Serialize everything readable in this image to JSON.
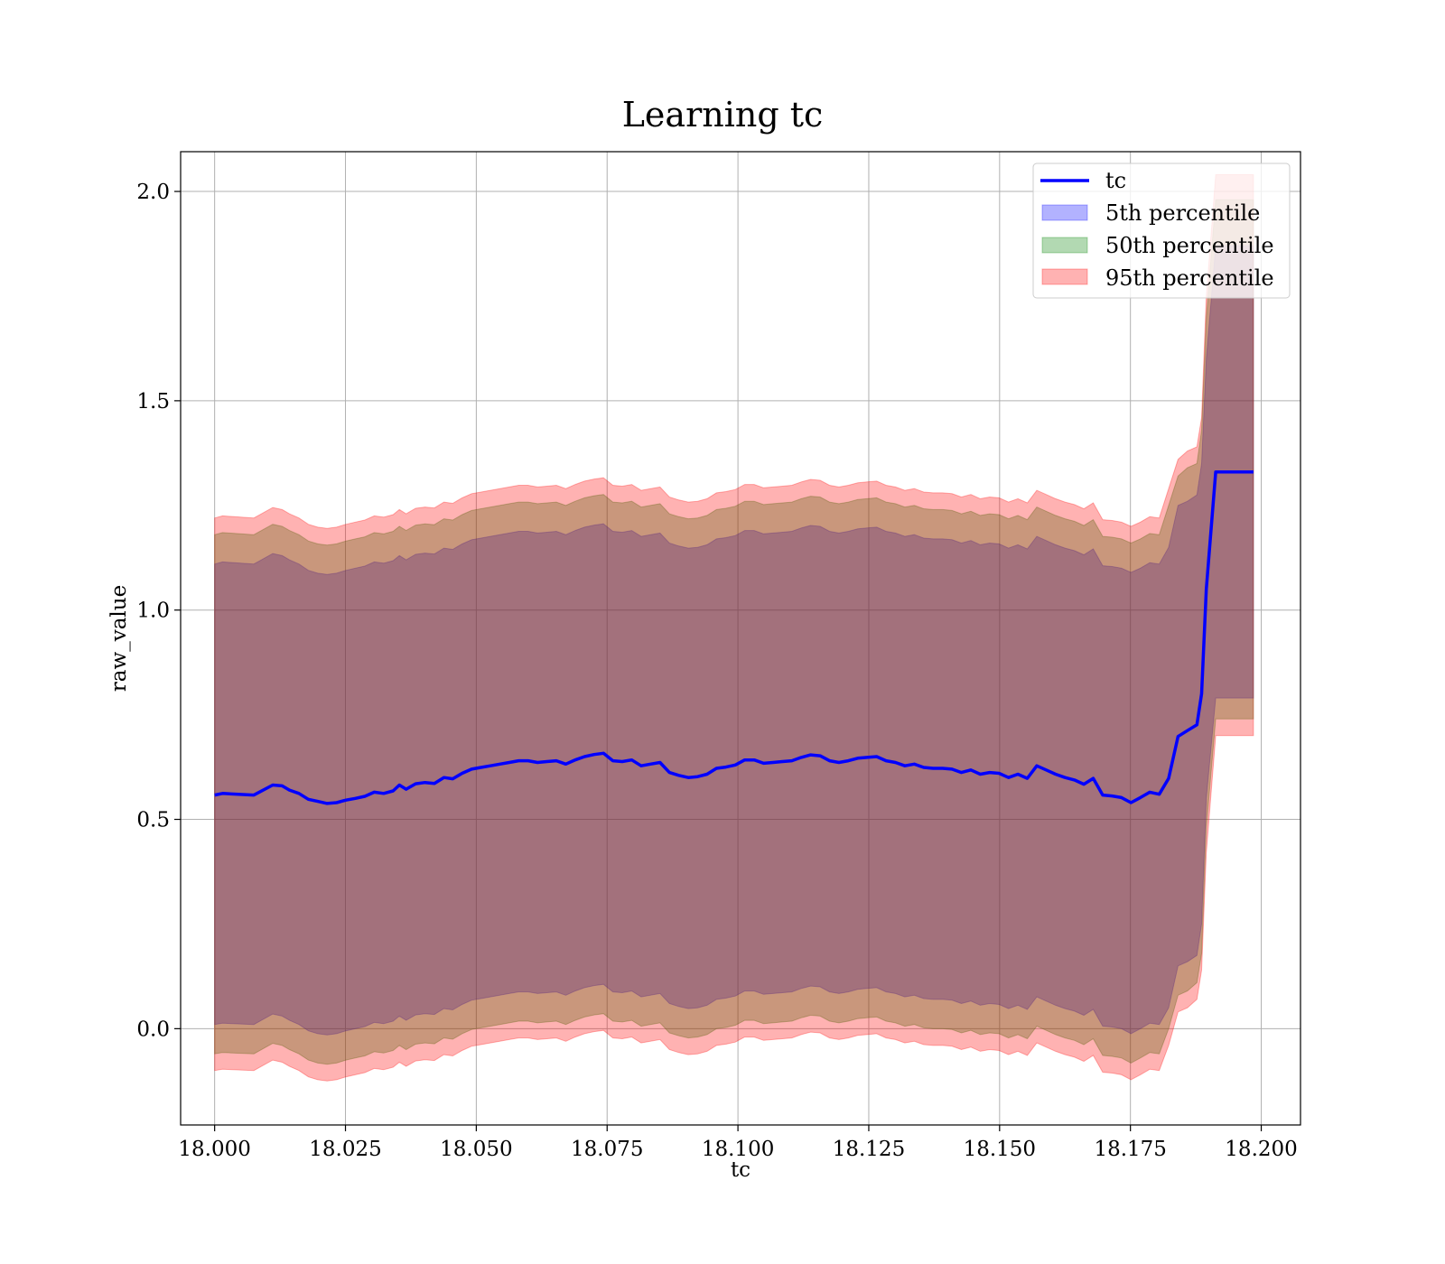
{
  "chart_data": {
    "type": "area",
    "title": "Learning tc",
    "xlabel": "tc",
    "ylabel": "raw_value",
    "xlim": [
      17.9935,
      18.2075
    ],
    "ylim": [
      -0.23,
      2.095
    ],
    "xticks": [
      "18.000",
      "18.025",
      "18.050",
      "18.075",
      "18.100",
      "18.125",
      "18.150",
      "18.175",
      "18.200"
    ],
    "yticks": [
      "0.0",
      "0.5",
      "1.0",
      "1.5",
      "2.0"
    ],
    "grid": true,
    "legend_position": "upper-right",
    "colors": {
      "tc": "#0000ff",
      "p5": "#0000ff",
      "p50": "#008000",
      "p95": "#ff0000",
      "grid": "#b0b0b0"
    },
    "x": [
      18.0,
      18.0015,
      18.0075,
      18.0111,
      18.0129,
      18.0143,
      18.0161,
      18.0179,
      18.0197,
      18.0215,
      18.0233,
      18.0251,
      18.0269,
      18.0287,
      18.0305,
      18.0323,
      18.0341,
      18.0353,
      18.0366,
      18.0384,
      18.0402,
      18.042,
      18.0438,
      18.0455,
      18.0473,
      18.0491,
      18.0509,
      18.0527,
      18.0545,
      18.0563,
      18.0581,
      18.0599,
      18.0617,
      18.0635,
      18.0653,
      18.0671,
      18.0689,
      18.0707,
      18.0725,
      18.0743,
      18.0761,
      18.0779,
      18.0797,
      18.0815,
      18.0833,
      18.0851,
      18.0869,
      18.0887,
      18.0905,
      18.0923,
      18.0941,
      18.0959,
      18.0977,
      18.0995,
      18.1013,
      18.1031,
      18.1049,
      18.1067,
      18.1085,
      18.1103,
      18.1121,
      18.1139,
      18.1157,
      18.1175,
      18.1193,
      18.1211,
      18.1229,
      18.1247,
      18.1265,
      18.1283,
      18.1301,
      18.1319,
      18.1337,
      18.1355,
      18.1373,
      18.1391,
      18.1409,
      18.1427,
      18.1445,
      18.1463,
      18.1481,
      18.1499,
      18.1517,
      18.1535,
      18.1553,
      18.1571,
      18.1589,
      18.1607,
      18.1625,
      18.1643,
      18.1661,
      18.1679,
      18.1697,
      18.1715,
      18.1733,
      18.1751,
      18.1769,
      18.1787,
      18.1805,
      18.1823,
      18.1841,
      18.1859,
      18.1877,
      18.1886,
      18.1895,
      18.1913,
      18.1931,
      18.1949,
      18.1967,
      18.1985
    ],
    "series": [
      {
        "name": "tc",
        "kind": "line",
        "values": [
          0.558,
          0.562,
          0.558,
          0.582,
          0.58,
          0.57,
          0.562,
          0.548,
          0.543,
          0.538,
          0.54,
          0.546,
          0.55,
          0.555,
          0.565,
          0.562,
          0.568,
          0.582,
          0.572,
          0.585,
          0.588,
          0.586,
          0.6,
          0.597,
          0.61,
          0.62,
          0.624,
          0.628,
          0.632,
          0.636,
          0.64,
          0.64,
          0.636,
          0.638,
          0.64,
          0.632,
          0.642,
          0.65,
          0.655,
          0.658,
          0.64,
          0.638,
          0.642,
          0.628,
          0.632,
          0.636,
          0.612,
          0.605,
          0.6,
          0.602,
          0.608,
          0.622,
          0.625,
          0.63,
          0.642,
          0.642,
          0.634,
          0.636,
          0.638,
          0.64,
          0.648,
          0.654,
          0.652,
          0.64,
          0.636,
          0.64,
          0.646,
          0.648,
          0.65,
          0.64,
          0.636,
          0.628,
          0.632,
          0.624,
          0.622,
          0.622,
          0.62,
          0.612,
          0.618,
          0.608,
          0.612,
          0.61,
          0.6,
          0.608,
          0.598,
          0.628,
          0.618,
          0.608,
          0.6,
          0.594,
          0.584,
          0.598,
          0.558,
          0.556,
          0.552,
          0.54,
          0.552,
          0.565,
          0.56,
          0.598,
          0.698,
          0.712,
          0.726,
          0.8,
          1.05,
          1.33,
          1.33,
          1.33,
          1.33,
          1.33
        ]
      },
      {
        "name": "5th percentile",
        "kind": "band",
        "lower": [
          0.01,
          0.013,
          0.01,
          0.035,
          0.03,
          0.02,
          0.01,
          -0.005,
          -0.012,
          -0.015,
          -0.012,
          -0.005,
          0.0,
          0.005,
          0.015,
          0.012,
          0.018,
          0.03,
          0.02,
          0.033,
          0.036,
          0.034,
          0.048,
          0.045,
          0.058,
          0.068,
          0.072,
          0.076,
          0.08,
          0.084,
          0.088,
          0.088,
          0.084,
          0.086,
          0.088,
          0.08,
          0.09,
          0.098,
          0.103,
          0.106,
          0.088,
          0.086,
          0.09,
          0.076,
          0.08,
          0.084,
          0.06,
          0.053,
          0.048,
          0.05,
          0.056,
          0.07,
          0.073,
          0.078,
          0.09,
          0.09,
          0.082,
          0.084,
          0.086,
          0.088,
          0.096,
          0.102,
          0.1,
          0.088,
          0.084,
          0.088,
          0.094,
          0.096,
          0.098,
          0.088,
          0.084,
          0.076,
          0.08,
          0.072,
          0.07,
          0.07,
          0.068,
          0.06,
          0.066,
          0.056,
          0.06,
          0.058,
          0.048,
          0.056,
          0.046,
          0.076,
          0.066,
          0.056,
          0.048,
          0.042,
          0.032,
          0.046,
          0.006,
          0.004,
          0.0,
          -0.012,
          0.0,
          0.013,
          0.01,
          0.05,
          0.15,
          0.16,
          0.175,
          0.25,
          0.55,
          0.79,
          0.79,
          0.79,
          0.79,
          0.79
        ],
        "upper": [
          1.11,
          1.115,
          1.11,
          1.135,
          1.13,
          1.12,
          1.11,
          1.095,
          1.088,
          1.085,
          1.088,
          1.095,
          1.1,
          1.105,
          1.115,
          1.112,
          1.118,
          1.13,
          1.12,
          1.133,
          1.136,
          1.134,
          1.148,
          1.145,
          1.158,
          1.168,
          1.172,
          1.176,
          1.18,
          1.184,
          1.188,
          1.188,
          1.184,
          1.186,
          1.188,
          1.18,
          1.19,
          1.198,
          1.203,
          1.206,
          1.188,
          1.186,
          1.19,
          1.176,
          1.18,
          1.184,
          1.16,
          1.153,
          1.148,
          1.15,
          1.156,
          1.17,
          1.173,
          1.178,
          1.19,
          1.19,
          1.182,
          1.184,
          1.186,
          1.188,
          1.196,
          1.202,
          1.2,
          1.188,
          1.184,
          1.188,
          1.194,
          1.196,
          1.198,
          1.188,
          1.184,
          1.176,
          1.18,
          1.172,
          1.17,
          1.17,
          1.168,
          1.16,
          1.166,
          1.156,
          1.16,
          1.158,
          1.148,
          1.156,
          1.146,
          1.176,
          1.166,
          1.156,
          1.148,
          1.142,
          1.132,
          1.146,
          1.106,
          1.104,
          1.1,
          1.09,
          1.1,
          1.113,
          1.11,
          1.15,
          1.25,
          1.26,
          1.275,
          1.35,
          1.6,
          1.87,
          1.87,
          1.87,
          1.87,
          1.87
        ]
      },
      {
        "name": "50th percentile",
        "kind": "band",
        "lower": [
          -0.06,
          -0.057,
          -0.06,
          -0.035,
          -0.04,
          -0.05,
          -0.06,
          -0.075,
          -0.082,
          -0.085,
          -0.082,
          -0.075,
          -0.07,
          -0.065,
          -0.055,
          -0.058,
          -0.052,
          -0.04,
          -0.05,
          -0.037,
          -0.034,
          -0.036,
          -0.022,
          -0.025,
          -0.012,
          -0.002,
          0.002,
          0.006,
          0.01,
          0.014,
          0.018,
          0.018,
          0.014,
          0.016,
          0.018,
          0.01,
          0.02,
          0.028,
          0.033,
          0.036,
          0.018,
          0.016,
          0.02,
          0.006,
          0.01,
          0.014,
          -0.01,
          -0.017,
          -0.022,
          -0.02,
          -0.014,
          0.0,
          0.003,
          0.008,
          0.02,
          0.02,
          0.012,
          0.014,
          0.016,
          0.018,
          0.026,
          0.032,
          0.03,
          0.018,
          0.014,
          0.018,
          0.024,
          0.026,
          0.028,
          0.018,
          0.014,
          0.006,
          0.01,
          0.002,
          0.0,
          0.0,
          -0.002,
          -0.01,
          -0.004,
          -0.014,
          -0.01,
          -0.012,
          -0.022,
          -0.014,
          -0.024,
          0.006,
          -0.004,
          -0.014,
          -0.022,
          -0.028,
          -0.038,
          -0.024,
          -0.064,
          -0.066,
          -0.07,
          -0.082,
          -0.07,
          -0.057,
          -0.06,
          0.0,
          0.08,
          0.09,
          0.11,
          0.18,
          0.48,
          0.74,
          0.74,
          0.74,
          0.74,
          0.74
        ],
        "upper": [
          1.18,
          1.185,
          1.18,
          1.205,
          1.2,
          1.19,
          1.18,
          1.165,
          1.158,
          1.155,
          1.158,
          1.165,
          1.17,
          1.175,
          1.185,
          1.182,
          1.188,
          1.2,
          1.19,
          1.203,
          1.206,
          1.204,
          1.218,
          1.215,
          1.228,
          1.238,
          1.242,
          1.246,
          1.25,
          1.254,
          1.258,
          1.258,
          1.254,
          1.256,
          1.258,
          1.25,
          1.26,
          1.268,
          1.273,
          1.276,
          1.258,
          1.256,
          1.26,
          1.246,
          1.25,
          1.254,
          1.23,
          1.223,
          1.218,
          1.22,
          1.226,
          1.24,
          1.243,
          1.248,
          1.26,
          1.26,
          1.252,
          1.254,
          1.256,
          1.258,
          1.266,
          1.272,
          1.27,
          1.258,
          1.254,
          1.258,
          1.264,
          1.266,
          1.268,
          1.258,
          1.254,
          1.246,
          1.25,
          1.242,
          1.24,
          1.24,
          1.238,
          1.23,
          1.236,
          1.226,
          1.23,
          1.228,
          1.218,
          1.226,
          1.216,
          1.246,
          1.236,
          1.226,
          1.218,
          1.212,
          1.202,
          1.216,
          1.176,
          1.174,
          1.17,
          1.16,
          1.17,
          1.183,
          1.18,
          1.25,
          1.32,
          1.34,
          1.35,
          1.43,
          1.7,
          1.98,
          1.98,
          1.98,
          1.98,
          1.98
        ]
      },
      {
        "name": "95th percentile",
        "kind": "band",
        "lower": [
          -0.1,
          -0.097,
          -0.1,
          -0.075,
          -0.08,
          -0.09,
          -0.1,
          -0.115,
          -0.122,
          -0.125,
          -0.122,
          -0.115,
          -0.11,
          -0.105,
          -0.095,
          -0.098,
          -0.092,
          -0.08,
          -0.09,
          -0.077,
          -0.074,
          -0.076,
          -0.062,
          -0.065,
          -0.052,
          -0.042,
          -0.038,
          -0.034,
          -0.03,
          -0.026,
          -0.022,
          -0.022,
          -0.026,
          -0.024,
          -0.022,
          -0.03,
          -0.02,
          -0.012,
          -0.007,
          -0.004,
          -0.022,
          -0.024,
          -0.02,
          -0.034,
          -0.03,
          -0.026,
          -0.05,
          -0.057,
          -0.062,
          -0.06,
          -0.054,
          -0.04,
          -0.037,
          -0.032,
          -0.02,
          -0.02,
          -0.028,
          -0.026,
          -0.024,
          -0.022,
          -0.014,
          -0.008,
          -0.01,
          -0.022,
          -0.026,
          -0.022,
          -0.016,
          -0.014,
          -0.012,
          -0.022,
          -0.026,
          -0.034,
          -0.03,
          -0.038,
          -0.04,
          -0.04,
          -0.042,
          -0.05,
          -0.044,
          -0.054,
          -0.05,
          -0.052,
          -0.062,
          -0.054,
          -0.064,
          -0.034,
          -0.044,
          -0.054,
          -0.062,
          -0.068,
          -0.078,
          -0.064,
          -0.104,
          -0.106,
          -0.11,
          -0.122,
          -0.11,
          -0.097,
          -0.1,
          -0.04,
          0.04,
          0.05,
          0.07,
          0.14,
          0.42,
          0.7,
          0.7,
          0.7,
          0.7,
          0.7
        ],
        "upper": [
          1.22,
          1.225,
          1.22,
          1.245,
          1.24,
          1.23,
          1.22,
          1.205,
          1.198,
          1.195,
          1.198,
          1.205,
          1.21,
          1.215,
          1.225,
          1.222,
          1.228,
          1.24,
          1.23,
          1.243,
          1.246,
          1.244,
          1.258,
          1.255,
          1.268,
          1.278,
          1.282,
          1.286,
          1.29,
          1.294,
          1.298,
          1.298,
          1.294,
          1.296,
          1.298,
          1.29,
          1.3,
          1.308,
          1.313,
          1.316,
          1.298,
          1.296,
          1.3,
          1.286,
          1.29,
          1.294,
          1.27,
          1.263,
          1.258,
          1.26,
          1.266,
          1.28,
          1.283,
          1.288,
          1.3,
          1.3,
          1.292,
          1.294,
          1.296,
          1.298,
          1.306,
          1.312,
          1.31,
          1.298,
          1.294,
          1.298,
          1.304,
          1.306,
          1.308,
          1.298,
          1.294,
          1.286,
          1.29,
          1.282,
          1.28,
          1.28,
          1.278,
          1.27,
          1.276,
          1.266,
          1.27,
          1.268,
          1.258,
          1.266,
          1.256,
          1.286,
          1.276,
          1.266,
          1.258,
          1.252,
          1.242,
          1.256,
          1.216,
          1.214,
          1.21,
          1.2,
          1.21,
          1.223,
          1.22,
          1.29,
          1.36,
          1.38,
          1.39,
          1.46,
          1.75,
          2.04,
          2.04,
          2.04,
          2.04,
          2.04
        ]
      }
    ]
  }
}
